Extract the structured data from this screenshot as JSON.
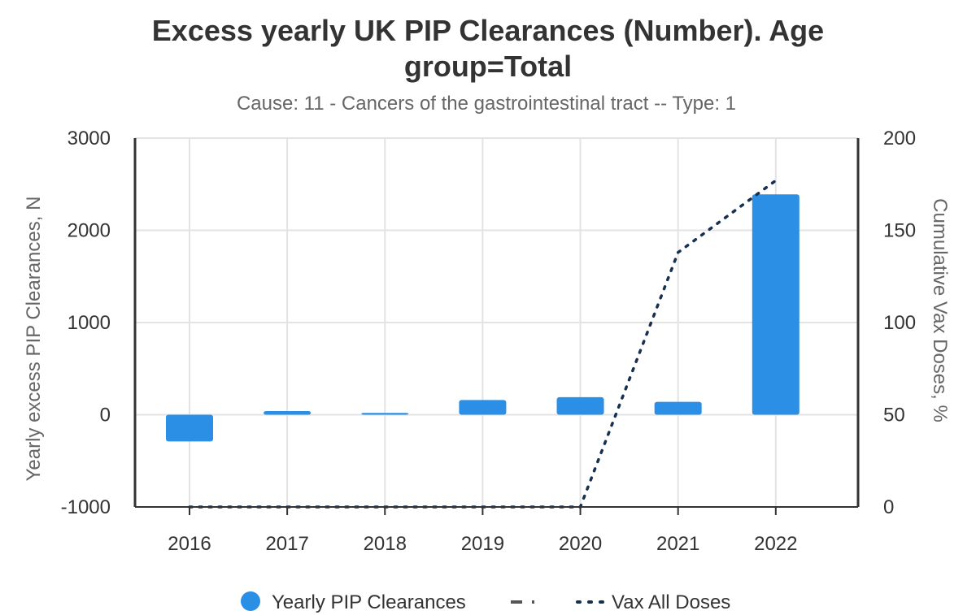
{
  "chart_data": {
    "type": "bar",
    "title_line1": "Excess yearly UK PIP Clearances (Number). Age",
    "title_line2": "group=Total",
    "subtitle": "Cause: 11 - Cancers of the gastrointestinal tract -- Type: 1",
    "categories": [
      "2016",
      "2017",
      "2018",
      "2019",
      "2020",
      "2021",
      "2022"
    ],
    "y_left": {
      "label": "Yearly excess PIP Clearances, N",
      "min": -1000,
      "max": 3000,
      "ticks": [
        3000,
        2000,
        1000,
        0,
        -1000
      ],
      "tick_labels": [
        "3000",
        "2000",
        "1000",
        "0",
        "-1000"
      ]
    },
    "y_right": {
      "label": "Cumulative Vax Doses, %",
      "min": 0,
      "max": 200,
      "ticks": [
        200,
        150,
        100,
        50,
        0
      ],
      "tick_labels": [
        "200",
        "150",
        "100",
        "50",
        "0"
      ]
    },
    "series": [
      {
        "name": "Yearly PIP Clearances",
        "type": "bar",
        "axis": "left",
        "color": "#2b8fe6",
        "values": [
          -290,
          40,
          20,
          160,
          190,
          140,
          2390
        ]
      },
      {
        "name": "Vax All Doses",
        "type": "line",
        "style": "dotted",
        "axis": "right",
        "color": "#17304f",
        "values": [
          0,
          0,
          0,
          0,
          0,
          138,
          177
        ]
      }
    ],
    "legend": {
      "position": "bottom",
      "items": [
        {
          "label": "Yearly PIP Clearances",
          "marker": "circle",
          "color": "#2b8fe6"
        },
        {
          "label": "",
          "marker": "dash-dot",
          "color": "#555555"
        },
        {
          "label": "Vax All Doses",
          "marker": "dotted",
          "color": "#17304f"
        }
      ]
    },
    "grid": true
  }
}
